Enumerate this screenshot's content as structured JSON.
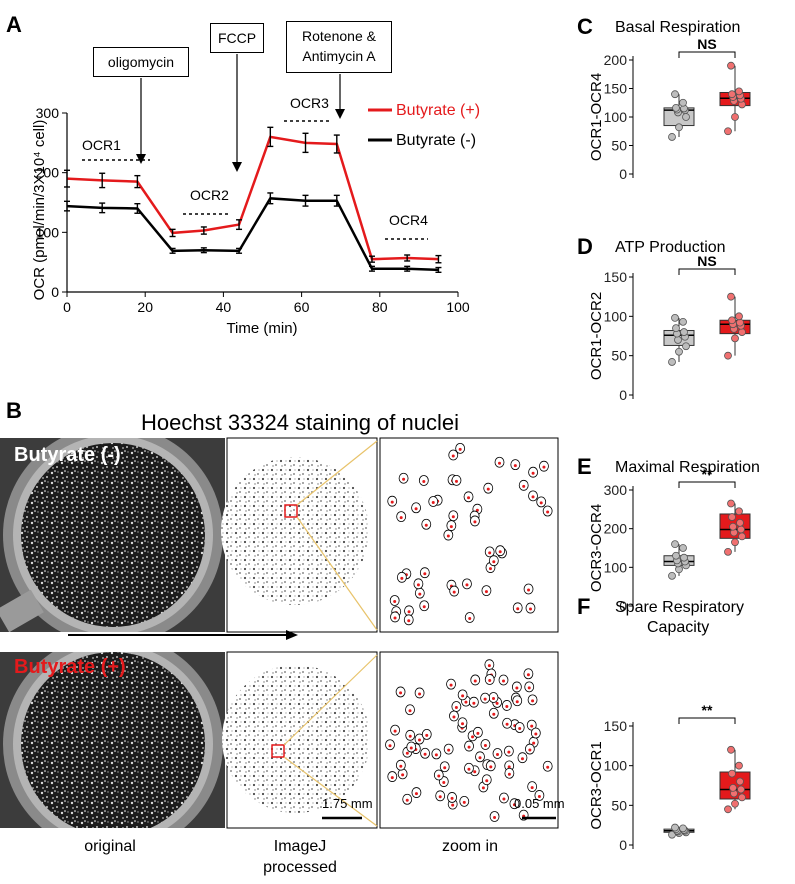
{
  "panelA": {
    "letter": "A",
    "annotations": [
      "oligomycin",
      "FCCP",
      "Rotenone &",
      "Antimycin A"
    ],
    "stage_labels": [
      "OCR1",
      "OCR2",
      "OCR3",
      "OCR4"
    ],
    "legend": [
      "Butyrate (+)",
      "Butyrate (-)"
    ],
    "colors": {
      "plus": "#e41a1c",
      "minus": "#000000"
    }
  },
  "chart_data": [
    {
      "type": "line",
      "title": "",
      "xlabel": "Time (min)",
      "ylabel": "OCR (pmol/min/3X10⁴ cell)",
      "xlim": [
        0,
        100
      ],
      "ylim": [
        0,
        300
      ],
      "xticks": [
        0,
        20,
        40,
        60,
        80,
        100
      ],
      "yticks": [
        0,
        100,
        200,
        300
      ],
      "x": [
        0,
        9,
        18,
        27,
        35,
        44,
        52,
        61,
        69,
        78,
        87,
        95
      ],
      "series": [
        {
          "name": "Butyrate (+)",
          "values": [
            190,
            187,
            185,
            99,
            103,
            113,
            260,
            250,
            248,
            55,
            57,
            55
          ],
          "errors": [
            14,
            12,
            10,
            6,
            6,
            8,
            16,
            16,
            15,
            5,
            5,
            6
          ]
        },
        {
          "name": "Butyrate (-)",
          "values": [
            144,
            141,
            140,
            69,
            70,
            69,
            157,
            153,
            153,
            39,
            39,
            37
          ],
          "errors": [
            8,
            8,
            8,
            4,
            4,
            4,
            9,
            9,
            9,
            4,
            4,
            4
          ]
        }
      ]
    },
    {
      "type": "box",
      "letter": "C",
      "title": "Basal Respiration",
      "ylabel": "OCR1-OCR4",
      "ylim": [
        0,
        200
      ],
      "yticks": [
        0,
        50,
        100,
        150,
        200
      ],
      "sig": "NS",
      "groups": [
        {
          "q1": 85,
          "median": 112,
          "q3": 116,
          "min": 65,
          "max": 140,
          "points": [
            65,
            82,
            100,
            108,
            112,
            113,
            115,
            116,
            125,
            140
          ]
        },
        {
          "q1": 120,
          "median": 133,
          "q3": 143,
          "min": 75,
          "max": 190,
          "points": [
            75,
            100,
            122,
            128,
            132,
            135,
            138,
            140,
            145,
            190
          ]
        }
      ]
    },
    {
      "type": "box",
      "letter": "D",
      "title": "ATP Production",
      "ylabel": "OCR1-OCR2",
      "ylim": [
        0,
        150
      ],
      "yticks": [
        0,
        50,
        100,
        150
      ],
      "sig": "NS",
      "groups": [
        {
          "q1": 63,
          "median": 76,
          "q3": 82,
          "min": 42,
          "max": 98,
          "points": [
            42,
            55,
            62,
            70,
            74,
            78,
            80,
            85,
            93,
            98
          ]
        },
        {
          "q1": 78,
          "median": 90,
          "q3": 95,
          "min": 50,
          "max": 125,
          "points": [
            50,
            72,
            80,
            84,
            88,
            90,
            92,
            95,
            100,
            125
          ]
        }
      ]
    },
    {
      "type": "box",
      "letter": "E",
      "title": "Maximal Respiration",
      "ylabel": "OCR3-OCR4",
      "ylim": [
        0,
        300
      ],
      "yticks": [
        0,
        100,
        200,
        300
      ],
      "sig": "**",
      "groups": [
        {
          "q1": 105,
          "median": 115,
          "q3": 130,
          "min": 78,
          "max": 160,
          "points": [
            78,
            95,
            105,
            110,
            115,
            118,
            125,
            130,
            150,
            160
          ]
        },
        {
          "q1": 175,
          "median": 198,
          "q3": 238,
          "min": 140,
          "max": 265,
          "points": [
            140,
            165,
            180,
            190,
            198,
            205,
            215,
            230,
            245,
            265
          ]
        }
      ]
    },
    {
      "type": "box",
      "letter": "F",
      "title": "Spare Respiratory",
      "title2": "Capacity",
      "ylabel": "OCR3-OCR1",
      "ylim": [
        0,
        150
      ],
      "yticks": [
        0,
        50,
        100,
        150
      ],
      "sig": "**",
      "groups": [
        {
          "q1": 16,
          "median": 18,
          "q3": 20,
          "min": 13,
          "max": 22,
          "points": [
            13,
            15,
            16,
            17,
            18,
            18,
            19,
            20,
            21,
            22
          ]
        },
        {
          "q1": 58,
          "median": 70,
          "q3": 92,
          "min": 45,
          "max": 120,
          "points": [
            45,
            52,
            60,
            65,
            70,
            72,
            80,
            90,
            100,
            120
          ]
        }
      ]
    }
  ],
  "panelB": {
    "letter": "B",
    "title": "Hoechst 33324 staining of nuclei",
    "row_labels": [
      "Butyrate (-)",
      "Butyrate (+)"
    ],
    "captions": {
      "original": "original",
      "processed_1": "ImageJ",
      "processed_2": "processed",
      "zoom": "zoom in"
    },
    "scale_bars": [
      "1.75 mm",
      "0.05 mm"
    ]
  }
}
